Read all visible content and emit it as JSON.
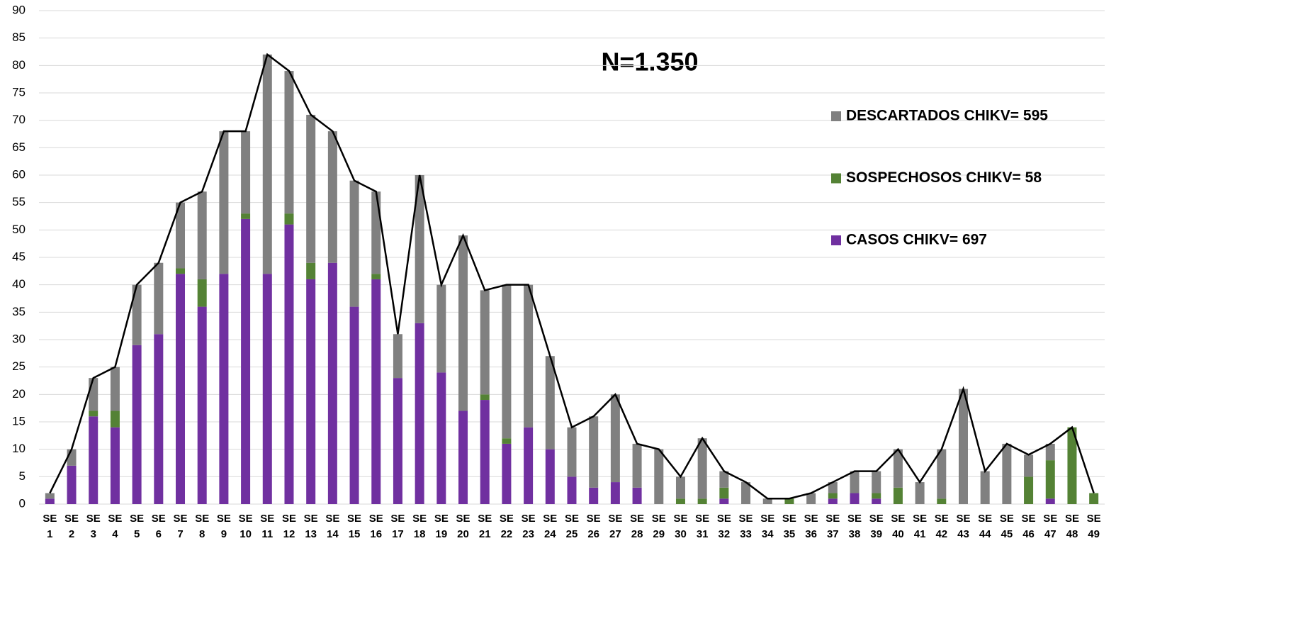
{
  "chart_data": {
    "type": "stacked_bar_line",
    "annotation": "N=1.350",
    "categories": [
      "SE\n1",
      "SE\n2",
      "SE\n3",
      "SE\n4",
      "SE\n5",
      "SE\n6",
      "SE\n7",
      "SE\n8",
      "SE\n9",
      "SE\n10",
      "SE\n11",
      "SE\n12",
      "SE\n13",
      "SE\n14",
      "SE\n15",
      "SE\n16",
      "SE\n17",
      "SE\n18",
      "SE\n19",
      "SE\n20",
      "SE\n21",
      "SE\n22",
      "SE\n23",
      "SE\n24",
      "SE\n25",
      "SE\n26",
      "SE\n27",
      "SE\n28",
      "SE\n29",
      "SE\n30",
      "SE\n31",
      "SE\n32",
      "SE\n33",
      "SE\n34",
      "SE\n35",
      "SE\n36",
      "SE\n37",
      "SE\n38",
      "SE\n39",
      "SE\n40",
      "SE\n41",
      "SE\n42",
      "SE\n43",
      "SE\n44",
      "SE\n45",
      "SE\n46",
      "SE\n47",
      "SE\n48",
      "SE\n49"
    ],
    "series": [
      {
        "name": "CASOS CHIKV= 697",
        "color": "#7030a0",
        "values": [
          1,
          7,
          16,
          14,
          29,
          31,
          42,
          36,
          42,
          52,
          42,
          51,
          41,
          44,
          36,
          41,
          23,
          33,
          24,
          17,
          19,
          11,
          14,
          10,
          5,
          3,
          4,
          3,
          0,
          0,
          0,
          1,
          0,
          0,
          0,
          0,
          1,
          2,
          1,
          0,
          0,
          0,
          0,
          0,
          0,
          0,
          1,
          0,
          0
        ]
      },
      {
        "name": "SOSPECHOSOS CHIKV= 58",
        "color": "#548235",
        "values": [
          0,
          0,
          1,
          3,
          0,
          0,
          1,
          5,
          0,
          1,
          0,
          2,
          3,
          0,
          0,
          1,
          0,
          0,
          0,
          0,
          1,
          1,
          0,
          0,
          0,
          0,
          0,
          0,
          0,
          1,
          1,
          2,
          0,
          0,
          1,
          0,
          1,
          0,
          1,
          3,
          0,
          1,
          0,
          0,
          0,
          5,
          7,
          14,
          2
        ]
      },
      {
        "name": "DESCARTADOS CHIKV= 595",
        "color": "#808080",
        "values": [
          1,
          3,
          6,
          8,
          11,
          13,
          12,
          16,
          26,
          15,
          40,
          26,
          27,
          24,
          23,
          15,
          8,
          27,
          16,
          32,
          19,
          28,
          26,
          17,
          9,
          13,
          16,
          8,
          10,
          4,
          11,
          3,
          4,
          1,
          0,
          2,
          2,
          4,
          4,
          7,
          4,
          9,
          21,
          6,
          11,
          4,
          3,
          0,
          0
        ]
      }
    ],
    "line": {
      "color": "#000000",
      "values": [
        2,
        10,
        23,
        25,
        40,
        44,
        55,
        57,
        68,
        68,
        82,
        79,
        71,
        68,
        59,
        57,
        31,
        60,
        40,
        49,
        39,
        40,
        40,
        27,
        14,
        16,
        20,
        11,
        10,
        5,
        12,
        6,
        4,
        1,
        1,
        2,
        4,
        6,
        6,
        10,
        4,
        10,
        21,
        6,
        11,
        9,
        11,
        14,
        2
      ]
    },
    "ylim": [
      0,
      90
    ],
    "yticks": [
      0,
      5,
      10,
      15,
      20,
      25,
      30,
      35,
      40,
      45,
      50,
      55,
      60,
      65,
      70,
      75,
      80,
      85,
      90
    ],
    "grid": true
  }
}
